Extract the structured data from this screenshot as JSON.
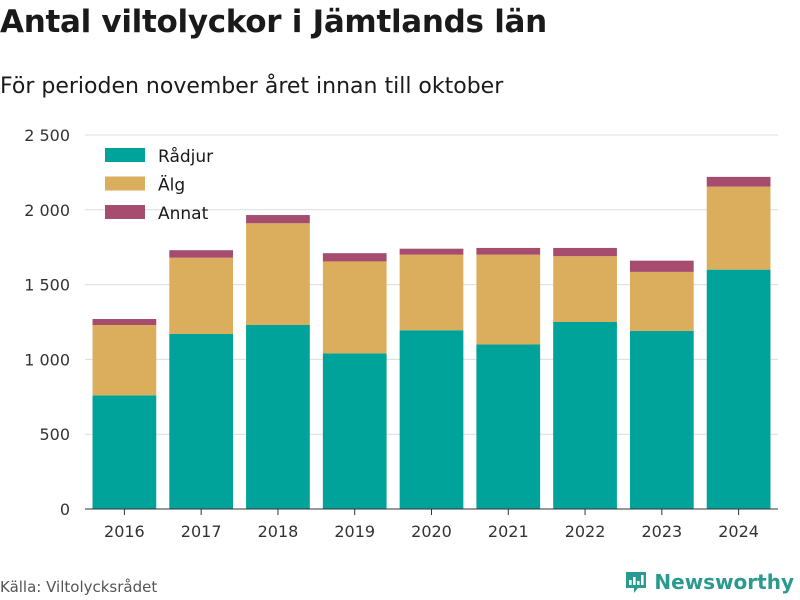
{
  "title": "Antal viltolyckor i Jämtlands län",
  "subtitle": "För perioden november året innan till oktober",
  "source": "Källa: Viltolycksrådet",
  "brand": {
    "name": "Newsworthy",
    "icon": "newsworthy-logo-icon",
    "color": "#2a9a8f"
  },
  "chart_data": {
    "type": "bar",
    "stacked": true,
    "categories": [
      "2016",
      "2017",
      "2018",
      "2019",
      "2020",
      "2021",
      "2022",
      "2023",
      "2024"
    ],
    "series": [
      {
        "name": "Rådjur",
        "color": "#00a39a",
        "values": [
          760,
          1170,
          1230,
          1040,
          1195,
          1100,
          1250,
          1190,
          1600
        ]
      },
      {
        "name": "Älg",
        "color": "#dbae5d",
        "values": [
          470,
          510,
          680,
          615,
          505,
          600,
          440,
          395,
          555
        ]
      },
      {
        "name": "Annat",
        "color": "#a64c6e",
        "values": [
          40,
          50,
          55,
          55,
          40,
          45,
          55,
          75,
          65
        ]
      }
    ],
    "ylim": [
      0,
      2500
    ],
    "yticks": [
      0,
      500,
      1000,
      1500,
      2000,
      2500
    ],
    "ytick_labels": [
      "0",
      "500",
      "1 000",
      "1 500",
      "2 000",
      "2 500"
    ],
    "grid": true,
    "legend": "top-left",
    "xlabel": "",
    "ylabel": ""
  }
}
